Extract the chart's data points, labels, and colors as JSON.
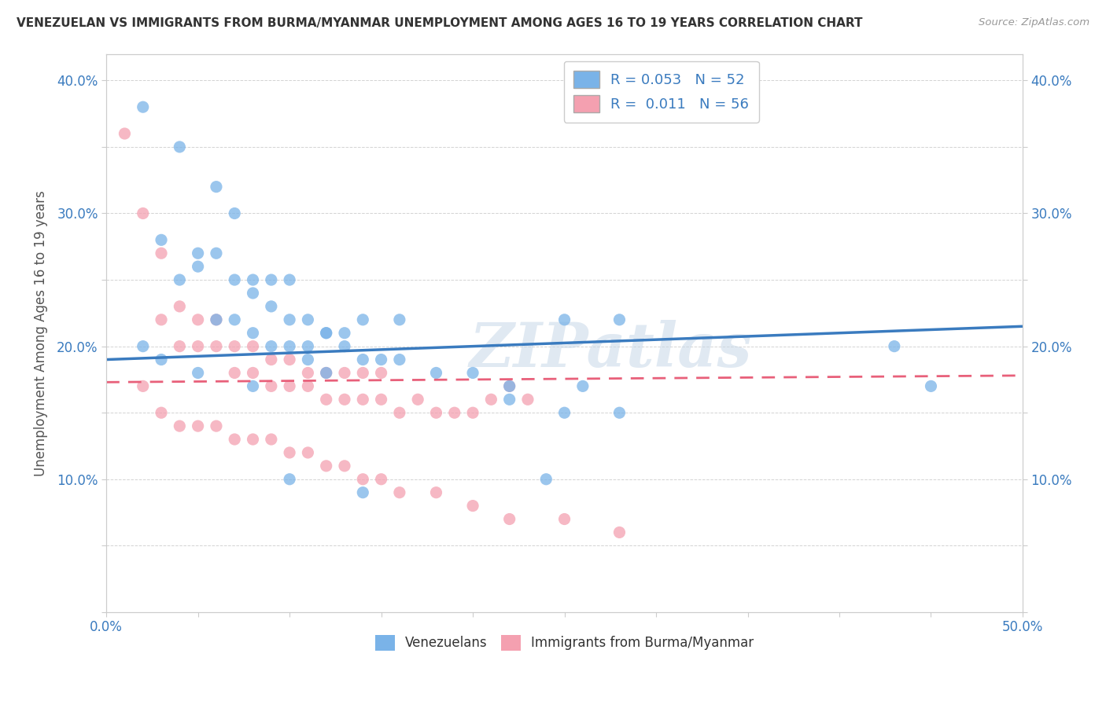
{
  "title": "VENEZUELAN VS IMMIGRANTS FROM BURMA/MYANMAR UNEMPLOYMENT AMONG AGES 16 TO 19 YEARS CORRELATION CHART",
  "source": "Source: ZipAtlas.com",
  "ylabel": "Unemployment Among Ages 16 to 19 years",
  "xlim": [
    0.0,
    0.5
  ],
  "ylim": [
    0.0,
    0.42
  ],
  "xticks": [
    0.0,
    0.05,
    0.1,
    0.15,
    0.2,
    0.25,
    0.3,
    0.35,
    0.4,
    0.45,
    0.5
  ],
  "yticks": [
    0.0,
    0.05,
    0.1,
    0.15,
    0.2,
    0.25,
    0.3,
    0.35,
    0.4
  ],
  "ytick_labels": [
    "",
    "",
    "10.0%",
    "",
    "20.0%",
    "",
    "30.0%",
    "",
    "40.0%"
  ],
  "xtick_labels": [
    "0.0%",
    "",
    "",
    "",
    "",
    "",
    "",
    "",
    "",
    "",
    "50.0%"
  ],
  "venezuelan_R": "0.053",
  "venezuelan_N": "52",
  "burma_R": "0.011",
  "burma_N": "56",
  "venezuelan_color": "#7ab3e8",
  "burma_color": "#f4a0b0",
  "venezuelan_line_color": "#3a7bbf",
  "burma_line_color": "#e8607a",
  "watermark": "ZIPatlas",
  "venezuelan_line_x0": 0.0,
  "venezuelan_line_y0": 0.19,
  "venezuelan_line_x1": 0.5,
  "venezuelan_line_y1": 0.215,
  "burma_line_x0": 0.0,
  "burma_line_y0": 0.173,
  "burma_line_x1": 0.5,
  "burma_line_y1": 0.178,
  "venezuelan_scatter_x": [
    0.02,
    0.04,
    0.06,
    0.03,
    0.05,
    0.07,
    0.04,
    0.06,
    0.08,
    0.05,
    0.07,
    0.09,
    0.06,
    0.08,
    0.1,
    0.07,
    0.09,
    0.11,
    0.08,
    0.1,
    0.12,
    0.09,
    0.11,
    0.13,
    0.1,
    0.12,
    0.14,
    0.11,
    0.13,
    0.15,
    0.12,
    0.14,
    0.16,
    0.16,
    0.18,
    0.2,
    0.22,
    0.24,
    0.26,
    0.28,
    0.25,
    0.28,
    0.25,
    0.22,
    0.43,
    0.45,
    0.02,
    0.03,
    0.05,
    0.08,
    0.1,
    0.14
  ],
  "venezuelan_scatter_y": [
    0.38,
    0.35,
    0.32,
    0.28,
    0.27,
    0.3,
    0.25,
    0.27,
    0.25,
    0.26,
    0.25,
    0.25,
    0.22,
    0.24,
    0.25,
    0.22,
    0.23,
    0.22,
    0.21,
    0.22,
    0.21,
    0.2,
    0.2,
    0.21,
    0.2,
    0.21,
    0.22,
    0.19,
    0.2,
    0.19,
    0.18,
    0.19,
    0.22,
    0.19,
    0.18,
    0.18,
    0.17,
    0.1,
    0.17,
    0.15,
    0.22,
    0.22,
    0.15,
    0.16,
    0.2,
    0.17,
    0.2,
    0.19,
    0.18,
    0.17,
    0.1,
    0.09
  ],
  "burma_scatter_x": [
    0.01,
    0.02,
    0.03,
    0.03,
    0.04,
    0.04,
    0.05,
    0.05,
    0.06,
    0.06,
    0.07,
    0.07,
    0.08,
    0.08,
    0.09,
    0.09,
    0.1,
    0.1,
    0.11,
    0.11,
    0.12,
    0.12,
    0.13,
    0.13,
    0.14,
    0.14,
    0.15,
    0.15,
    0.16,
    0.17,
    0.18,
    0.19,
    0.2,
    0.21,
    0.22,
    0.23,
    0.02,
    0.03,
    0.04,
    0.05,
    0.06,
    0.07,
    0.08,
    0.09,
    0.1,
    0.11,
    0.12,
    0.13,
    0.14,
    0.15,
    0.16,
    0.18,
    0.2,
    0.22,
    0.25,
    0.28
  ],
  "burma_scatter_y": [
    0.36,
    0.3,
    0.27,
    0.22,
    0.2,
    0.23,
    0.2,
    0.22,
    0.2,
    0.22,
    0.18,
    0.2,
    0.18,
    0.2,
    0.17,
    0.19,
    0.17,
    0.19,
    0.17,
    0.18,
    0.16,
    0.18,
    0.16,
    0.18,
    0.16,
    0.18,
    0.16,
    0.18,
    0.15,
    0.16,
    0.15,
    0.15,
    0.15,
    0.16,
    0.17,
    0.16,
    0.17,
    0.15,
    0.14,
    0.14,
    0.14,
    0.13,
    0.13,
    0.13,
    0.12,
    0.12,
    0.11,
    0.11,
    0.1,
    0.1,
    0.09,
    0.09,
    0.08,
    0.07,
    0.07,
    0.06
  ]
}
